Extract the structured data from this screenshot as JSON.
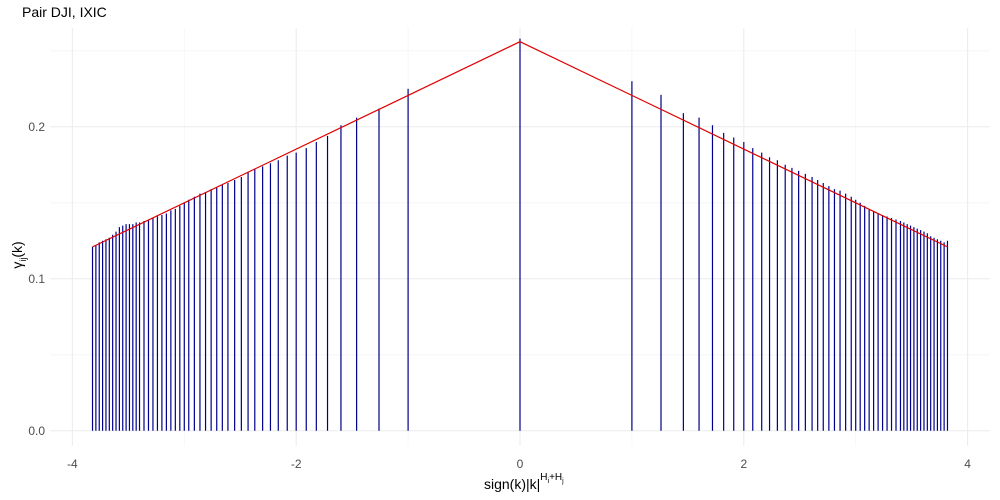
{
  "chart_data": {
    "type": "bar",
    "title": "Pair DJI, IXIC",
    "xlabel": {
      "base": "sign(k)|k|",
      "sup_main": "H",
      "sup_sub1": "i",
      "sup_plus": "+H",
      "sup_sub2": "j"
    },
    "ylabel": {
      "main": "γ",
      "sub": "ij",
      "suffix": "(k)"
    },
    "xlim": [
      -4.2,
      4.2
    ],
    "ylim": [
      -0.01,
      0.265
    ],
    "x_ticks": [
      -4,
      -2,
      0,
      2,
      4
    ],
    "x_tick_labels": [
      "-4",
      "-2",
      "0",
      "2",
      "4"
    ],
    "y_ticks": [
      0.0,
      0.1,
      0.2
    ],
    "y_tick_labels": [
      "0.0",
      "0.1",
      "0.2"
    ],
    "grid": true,
    "bar_color": "#00008B",
    "line_color": "#E00000",
    "series": [
      {
        "kind": "vertical-lines",
        "x": [
          -3.82,
          -3.79,
          -3.76,
          -3.73,
          -3.7,
          -3.67,
          -3.64,
          -3.61,
          -3.58,
          -3.55,
          -3.52,
          -3.49,
          -3.46,
          -3.43,
          -3.4,
          -3.36,
          -3.32,
          -3.28,
          -3.24,
          -3.2,
          -3.16,
          -3.12,
          -3.08,
          -3.04,
          -3.0,
          -2.96,
          -2.91,
          -2.86,
          -2.81,
          -2.76,
          -2.71,
          -2.66,
          -2.61,
          -2.55,
          -2.49,
          -2.43,
          -2.37,
          -2.3,
          -2.23,
          -2.16,
          -2.08,
          -2.0,
          -1.91,
          -1.82,
          -1.72,
          -1.6,
          -1.46,
          -1.26,
          -1.0,
          0.0,
          1.0,
          1.26,
          1.46,
          1.6,
          1.72,
          1.82,
          1.91,
          2.0,
          2.08,
          2.16,
          2.23,
          2.3,
          2.37,
          2.43,
          2.49,
          2.55,
          2.61,
          2.66,
          2.71,
          2.76,
          2.81,
          2.86,
          2.91,
          2.96,
          3.0,
          3.04,
          3.08,
          3.12,
          3.16,
          3.2,
          3.24,
          3.28,
          3.32,
          3.36,
          3.4,
          3.43,
          3.46,
          3.49,
          3.52,
          3.55,
          3.58,
          3.61,
          3.64,
          3.67,
          3.7,
          3.73,
          3.76,
          3.79,
          3.82
        ],
        "y": [
          0.121,
          0.122,
          0.124,
          0.125,
          0.126,
          0.127,
          0.129,
          0.131,
          0.134,
          0.135,
          0.136,
          0.136,
          0.136,
          0.137,
          0.137,
          0.138,
          0.139,
          0.14,
          0.141,
          0.142,
          0.143,
          0.145,
          0.146,
          0.148,
          0.15,
          0.152,
          0.154,
          0.156,
          0.157,
          0.159,
          0.16,
          0.162,
          0.163,
          0.165,
          0.167,
          0.17,
          0.172,
          0.174,
          0.176,
          0.178,
          0.181,
          0.183,
          0.186,
          0.19,
          0.194,
          0.201,
          0.206,
          0.212,
          0.225,
          0.258,
          0.23,
          0.221,
          0.209,
          0.206,
          0.201,
          0.196,
          0.193,
          0.19,
          0.186,
          0.183,
          0.18,
          0.178,
          0.175,
          0.173,
          0.171,
          0.169,
          0.167,
          0.165,
          0.163,
          0.161,
          0.159,
          0.158,
          0.156,
          0.154,
          0.152,
          0.15,
          0.148,
          0.146,
          0.144,
          0.143,
          0.142,
          0.141,
          0.14,
          0.139,
          0.138,
          0.137,
          0.136,
          0.135,
          0.134,
          0.133,
          0.132,
          0.131,
          0.13,
          0.128,
          0.127,
          0.126,
          0.125,
          0.124,
          0.125
        ]
      },
      {
        "kind": "line",
        "x": [
          -3.82,
          0.0,
          3.82
        ],
        "y": [
          0.121,
          0.256,
          0.121
        ]
      }
    ]
  }
}
